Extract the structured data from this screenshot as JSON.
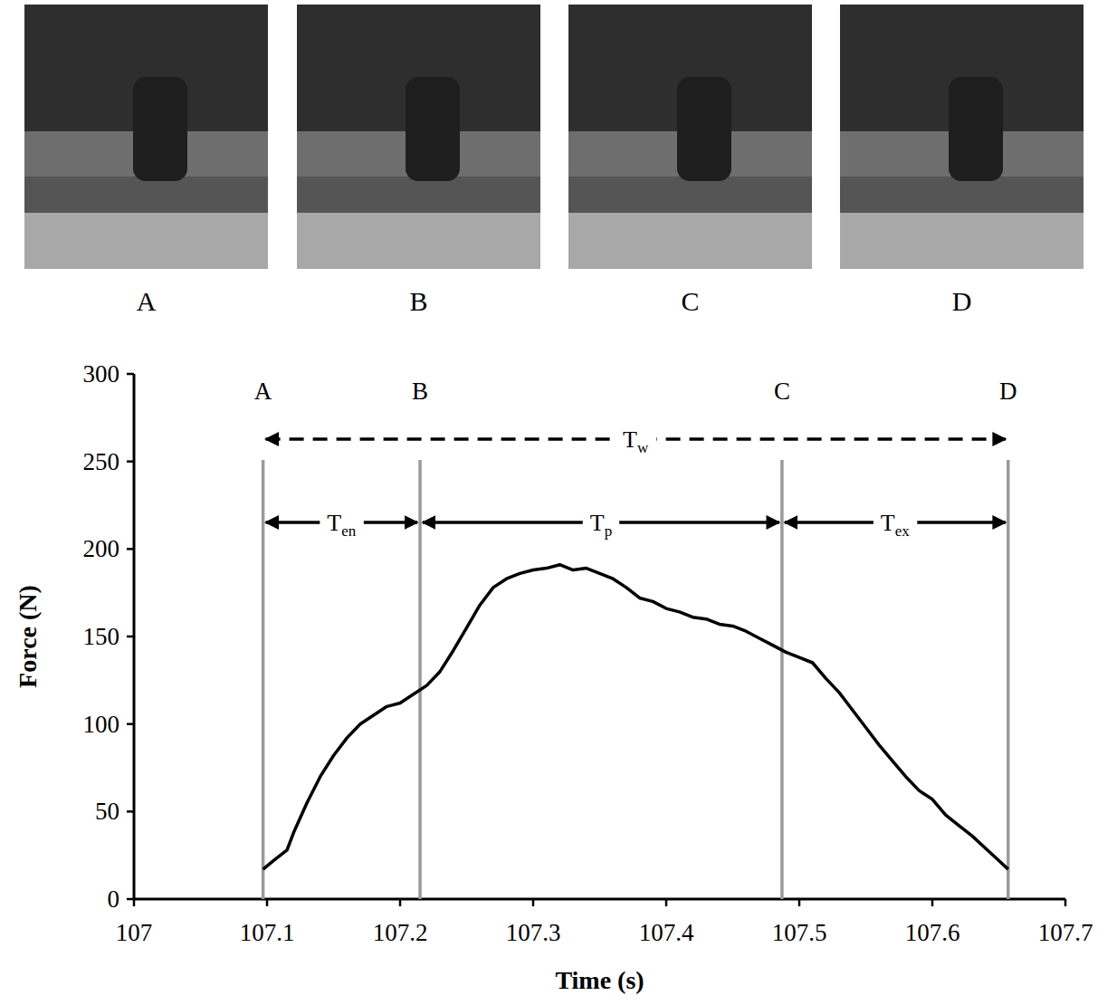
{
  "photos": {
    "labels": [
      "A",
      "B",
      "C",
      "D"
    ]
  },
  "chart_data": {
    "type": "line",
    "xlabel": "Time (s)",
    "ylabel": "Force (N)",
    "xlim": [
      107,
      107.7
    ],
    "xticks": [
      107,
      107.1,
      107.2,
      107.3,
      107.4,
      107.5,
      107.6,
      107.7
    ],
    "ylim": [
      0,
      300
    ],
    "yticks": [
      0,
      50,
      100,
      150,
      200,
      250,
      300
    ],
    "grid": false,
    "x": [
      107.097,
      107.105,
      107.11,
      107.115,
      107.12,
      107.13,
      107.14,
      107.15,
      107.16,
      107.17,
      107.18,
      107.19,
      107.2,
      107.21,
      107.22,
      107.23,
      107.24,
      107.25,
      107.26,
      107.27,
      107.28,
      107.29,
      107.3,
      107.31,
      107.32,
      107.33,
      107.34,
      107.35,
      107.36,
      107.37,
      107.38,
      107.39,
      107.4,
      107.41,
      107.42,
      107.43,
      107.44,
      107.45,
      107.46,
      107.47,
      107.48,
      107.49,
      107.5,
      107.51,
      107.52,
      107.53,
      107.54,
      107.55,
      107.56,
      107.57,
      107.58,
      107.59,
      107.6,
      107.61,
      107.62,
      107.63,
      107.64,
      107.65,
      107.657
    ],
    "series": [
      {
        "name": "Force",
        "color": "#000000",
        "values": [
          17,
          22,
          25,
          28,
          38,
          55,
          70,
          82,
          92,
          100,
          105,
          110,
          112,
          117,
          122,
          130,
          142,
          155,
          168,
          178,
          183,
          186,
          188,
          189,
          191,
          188,
          189,
          186,
          183,
          178,
          172,
          170,
          166,
          164,
          161,
          160,
          157,
          156,
          153,
          149,
          145,
          141,
          138,
          135,
          126,
          118,
          108,
          98,
          88,
          79,
          70,
          62,
          57,
          48,
          42,
          36,
          29,
          22,
          17
        ]
      }
    ],
    "phases": [
      {
        "label": "A",
        "x": 107.097
      },
      {
        "label": "B",
        "x": 107.215
      },
      {
        "label": "C",
        "x": 107.487
      },
      {
        "label": "D",
        "x": 107.657
      }
    ],
    "intervals": [
      {
        "label": "T",
        "subscript": "w",
        "from": 107.097,
        "to": 107.657,
        "line_style": "dashed"
      },
      {
        "label": "T",
        "subscript": "en",
        "from": 107.097,
        "to": 107.215,
        "line_style": "solid"
      },
      {
        "label": "T",
        "subscript": "p",
        "from": 107.215,
        "to": 107.487,
        "line_style": "solid"
      },
      {
        "label": "T",
        "subscript": "ex",
        "from": 107.487,
        "to": 107.657,
        "line_style": "solid"
      }
    ]
  }
}
